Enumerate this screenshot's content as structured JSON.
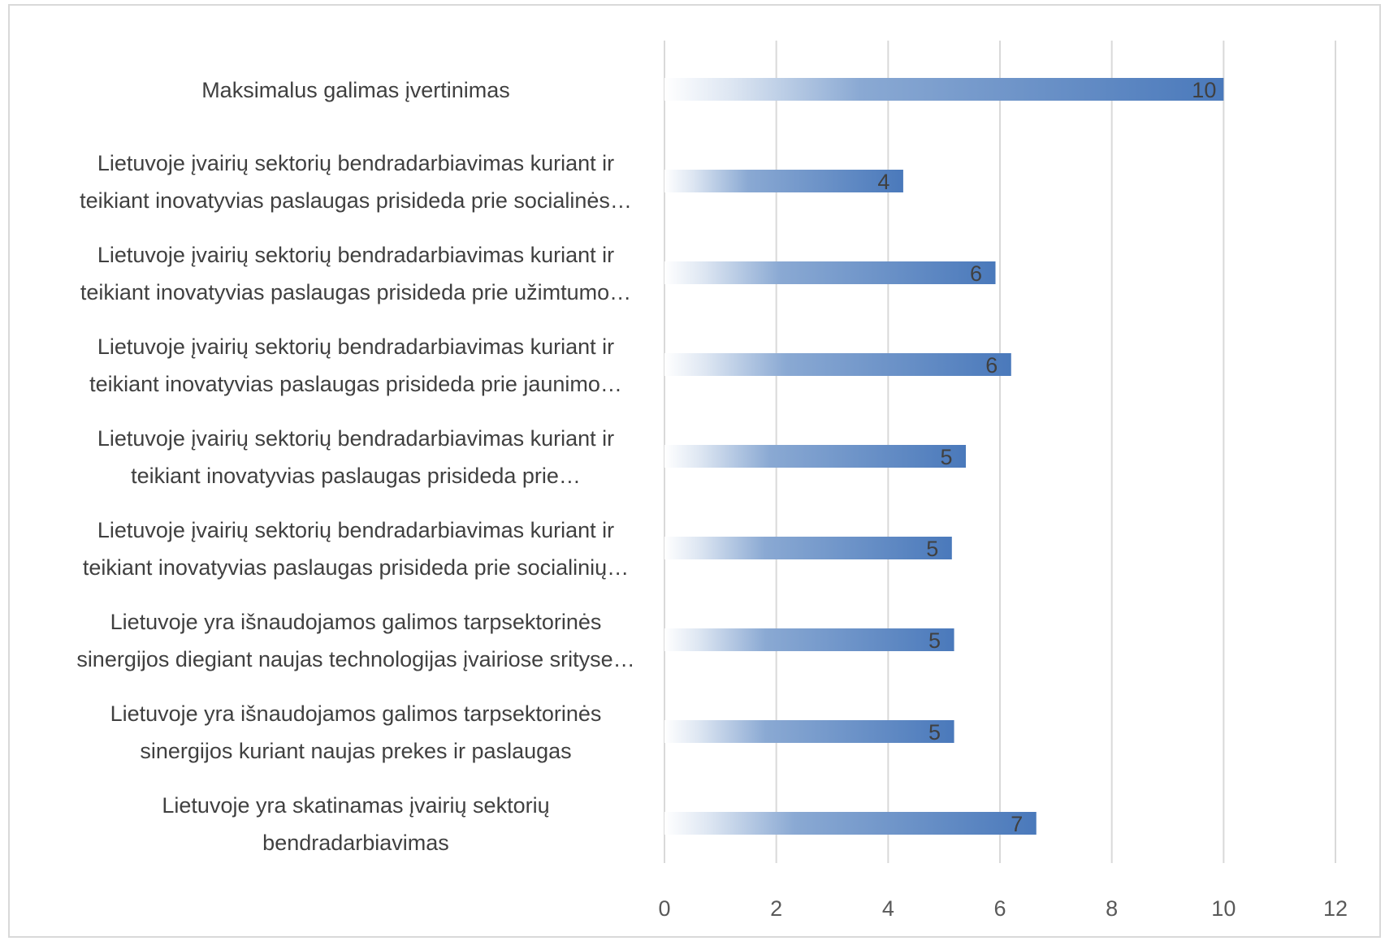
{
  "chart_data": {
    "type": "bar",
    "orientation": "horizontal",
    "categories": [
      [
        "Maksimalus galimas įvertinimas"
      ],
      [
        "Lietuvoje įvairių sektorių bendradarbiavimas kuriant ir",
        "teikiant inovatyvias paslaugas prisideda prie socialinės…"
      ],
      [
        "Lietuvoje įvairių sektorių bendradarbiavimas kuriant ir",
        "teikiant inovatyvias paslaugas prisideda prie užimtumo…"
      ],
      [
        "Lietuvoje įvairių sektorių bendradarbiavimas kuriant ir",
        "teikiant inovatyvias paslaugas prisideda prie jaunimo…"
      ],
      [
        "Lietuvoje įvairių sektorių bendradarbiavimas kuriant ir",
        "teikiant inovatyvias paslaugas prisideda prie…"
      ],
      [
        "Lietuvoje įvairių sektorių bendradarbiavimas kuriant ir",
        "teikiant inovatyvias paslaugas prisideda prie socialinių…"
      ],
      [
        "Lietuvoje yra išnaudojamos galimos tarpsektorinės",
        "sinergijos diegiant naujas technologijas įvairiose srityse…"
      ],
      [
        "Lietuvoje yra išnaudojamos galimos tarpsektorinės",
        "sinergijos kuriant naujas prekes ir paslaugas"
      ],
      [
        "Lietuvoje yra skatinamas įvairių sektorių",
        "bendradarbiavimas"
      ]
    ],
    "values": [
      10,
      4.27,
      5.92,
      6.2,
      5.39,
      5.14,
      5.18,
      5.18,
      6.65
    ],
    "data_labels": [
      "10",
      "4",
      "6",
      "6",
      "5",
      "5",
      "5",
      "5",
      "7"
    ],
    "xlim": [
      0,
      12
    ],
    "ticks": [
      "0",
      "2",
      "4",
      "6",
      "8",
      "10",
      "12"
    ],
    "grid": true,
    "bar_color": "#4f81bd",
    "bar_style": "gradient-fade-left",
    "grid_color": "#d9d9d9",
    "legend": "none"
  }
}
